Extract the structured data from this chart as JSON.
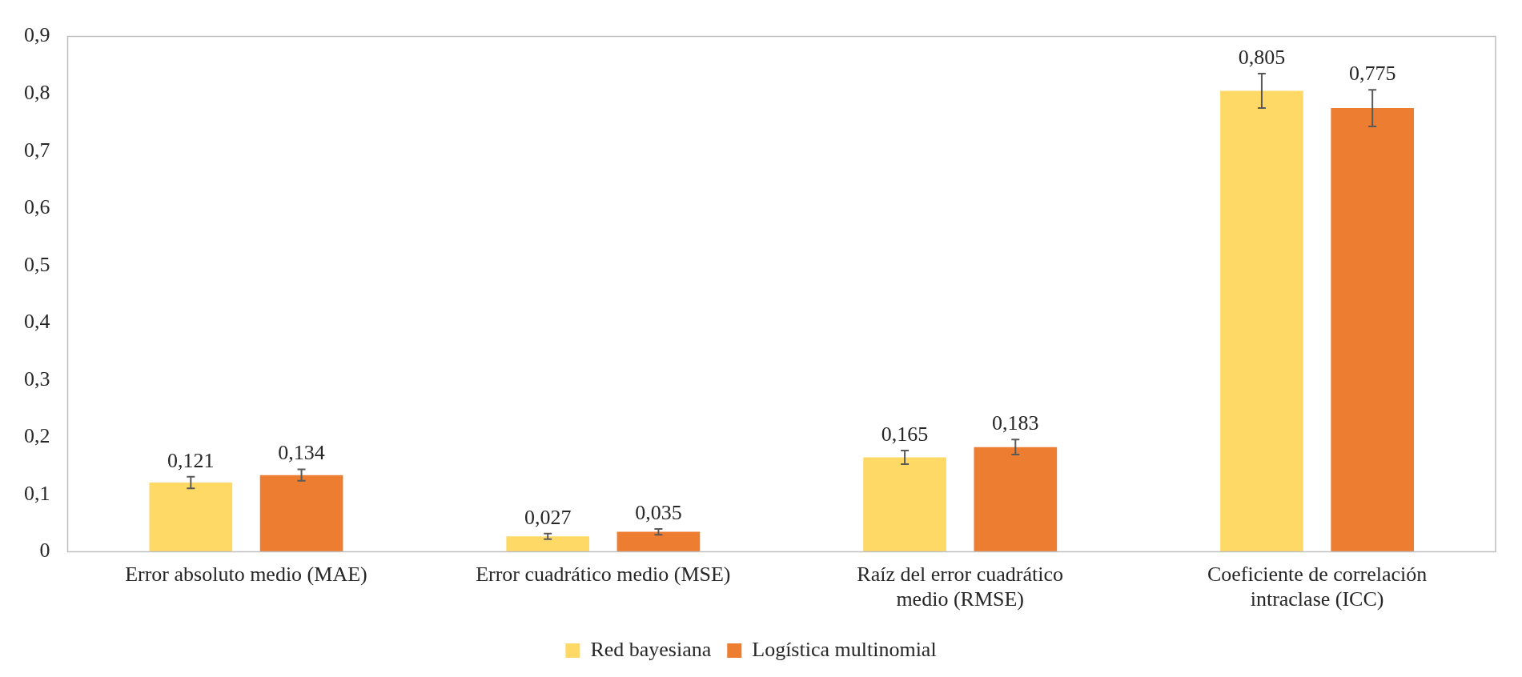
{
  "chart_data": {
    "type": "bar",
    "categories": [
      "Error absoluto medio (MAE)",
      "Error cuadrático medio (MSE)",
      "Raíz del error cuadrático medio (RMSE)",
      "Coeficiente de correlación intraclase (ICC)"
    ],
    "series": [
      {
        "name": "Red bayesiana",
        "color": "#ffd966",
        "values": [
          0.121,
          0.027,
          0.165,
          0.805
        ],
        "errors": [
          0.01,
          0.005,
          0.012,
          0.03
        ],
        "value_labels": [
          "0,121",
          "0,027",
          "0,165",
          "0,805"
        ]
      },
      {
        "name": "Logística multinomial",
        "color": "#ed7d31",
        "values": [
          0.134,
          0.035,
          0.183,
          0.775
        ],
        "errors": [
          0.01,
          0.005,
          0.013,
          0.032
        ],
        "value_labels": [
          "0,134",
          "0,035",
          "0,183",
          "0,775"
        ]
      }
    ],
    "ylim": [
      0,
      0.9
    ],
    "yticks": [
      {
        "value": 0,
        "label": "0"
      },
      {
        "value": 0.1,
        "label": "0,1"
      },
      {
        "value": 0.2,
        "label": "0,2"
      },
      {
        "value": 0.3,
        "label": "0,3"
      },
      {
        "value": 0.4,
        "label": "0,4"
      },
      {
        "value": 0.5,
        "label": "0,5"
      },
      {
        "value": 0.6,
        "label": "0,6"
      },
      {
        "value": 0.7,
        "label": "0,7"
      },
      {
        "value": 0.8,
        "label": "0,8"
      },
      {
        "value": 0.9,
        "label": "0,9"
      }
    ],
    "grid": false,
    "legend": "bottom"
  }
}
